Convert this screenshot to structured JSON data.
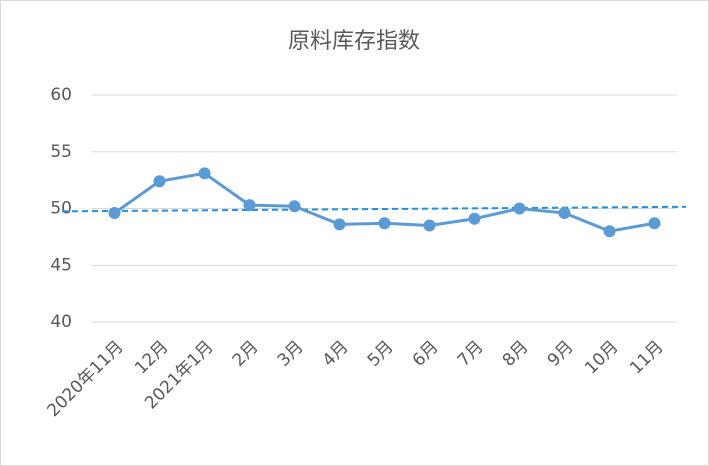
{
  "chart_data": {
    "type": "line",
    "title": "原料库存指数",
    "categories": [
      "2020年11月",
      "12月",
      "2021年1月",
      "2月",
      "3月",
      "4月",
      "5月",
      "6月",
      "7月",
      "8月",
      "9月",
      "10月",
      "11月"
    ],
    "series": [
      {
        "name": "原料库存指数",
        "color": "#5b9bd5",
        "values": [
          49.6,
          52.4,
          53.1,
          50.3,
          50.2,
          48.6,
          48.7,
          48.5,
          49.1,
          50.0,
          49.6,
          48.0,
          48.7
        ]
      }
    ],
    "trendline": {
      "color": "#1e90e0",
      "start": 49.75,
      "end": 50.15
    },
    "ylim": [
      40,
      60
    ],
    "yticks": [
      40,
      45,
      50,
      55,
      60
    ],
    "grid": true,
    "legend": false
  }
}
